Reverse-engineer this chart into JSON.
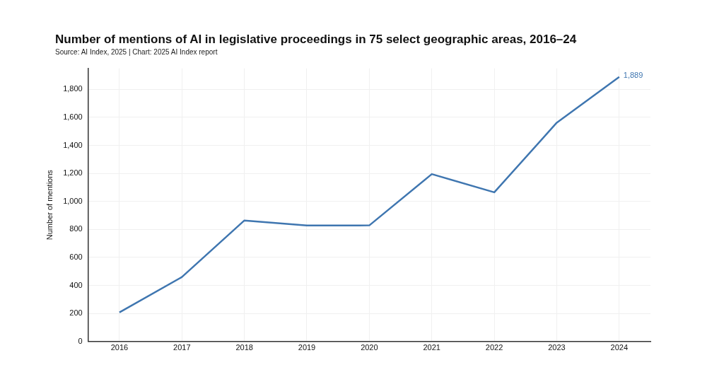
{
  "chart_data": {
    "type": "line",
    "title": "Number of mentions of AI in legislative proceedings in 75 select geographic areas, 2016–24",
    "subtitle": "Source: AI Index, 2025 | Chart: 2025 AI Index report",
    "ylabel": "Number of mentions",
    "categories": [
      "2016",
      "2017",
      "2018",
      "2019",
      "2020",
      "2021",
      "2022",
      "2023",
      "2024"
    ],
    "series": [
      {
        "color": "#3f76b0",
        "values": [
          208,
          460,
          864,
          828,
          829,
          1195,
          1065,
          1562,
          1889
        ],
        "value_labels": [
          null,
          null,
          null,
          null,
          null,
          null,
          null,
          null,
          "1,889"
        ]
      }
    ],
    "ylim": [
      0,
      1950
    ],
    "yticks": [
      {
        "value": 0,
        "label": "0"
      },
      {
        "value": 200,
        "label": "200"
      },
      {
        "value": 400,
        "label": "400"
      },
      {
        "value": 600,
        "label": "600"
      },
      {
        "value": 800,
        "label": "800"
      },
      {
        "value": 1000,
        "label": "1,000"
      },
      {
        "value": 1200,
        "label": "1,200"
      },
      {
        "value": 1400,
        "label": "1,400"
      },
      {
        "value": 1600,
        "label": "1,600"
      },
      {
        "value": 1800,
        "label": "1,800"
      }
    ],
    "grid": true,
    "legend": false,
    "marker": "none",
    "line_style": "solid"
  }
}
